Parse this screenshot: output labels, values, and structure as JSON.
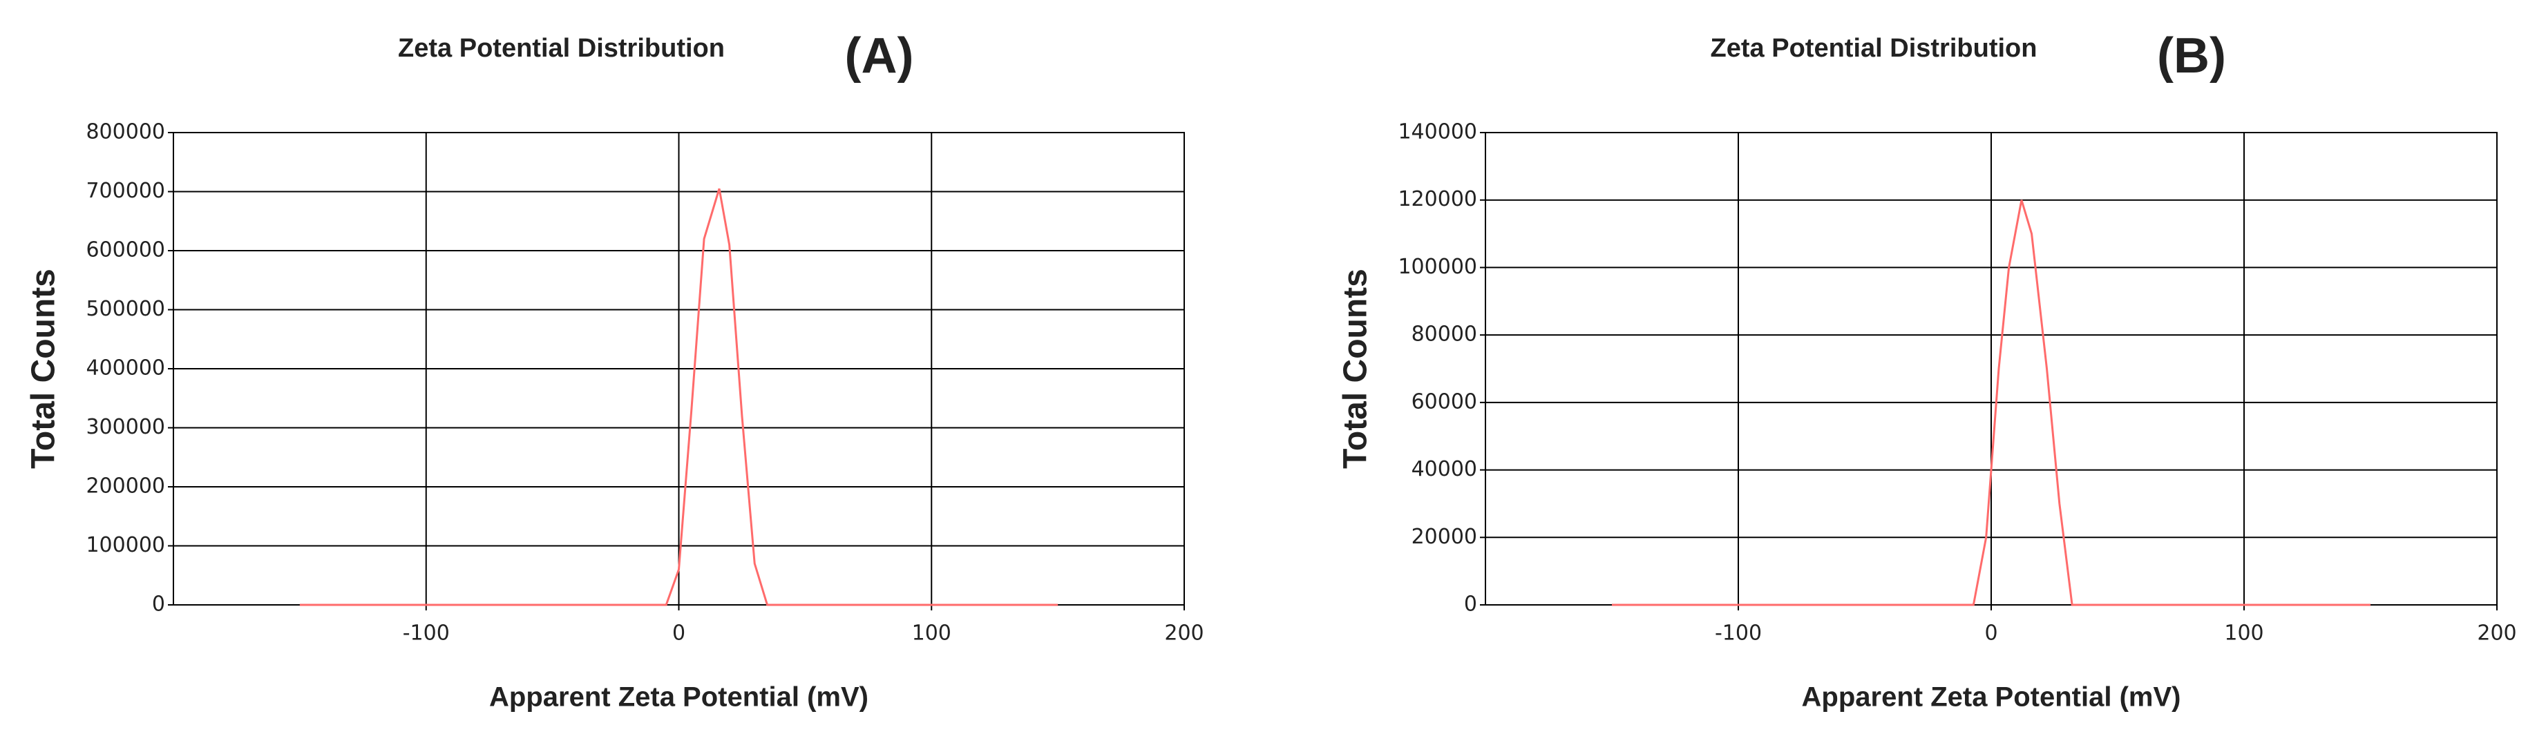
{
  "chart_data": [
    {
      "type": "line",
      "title": "Zeta Potential Distribution",
      "panel_label": "(A)",
      "xlabel": "Apparent Zeta Potential (mV)",
      "ylabel": "Total Counts",
      "x": [
        -150,
        -5,
        0,
        5,
        10,
        16,
        20,
        25,
        30,
        35,
        150
      ],
      "values": [
        0,
        0,
        60000,
        330000,
        620000,
        705000,
        610000,
        320000,
        70000,
        0,
        0
      ],
      "color": "#ff6b6b",
      "xlim": [
        -200,
        200
      ],
      "xticks": [
        -100,
        0,
        100,
        200
      ],
      "ylim": [
        0,
        800000
      ],
      "yticks": [
        0,
        100000,
        200000,
        300000,
        400000,
        500000,
        600000,
        700000,
        800000
      ],
      "grid": true
    },
    {
      "type": "line",
      "title": "Zeta Potential Distribution",
      "panel_label": "(B)",
      "xlabel": "Apparent Zeta Potential (mV)",
      "ylabel": "Total Counts",
      "x": [
        -150,
        -7,
        -2,
        3,
        7,
        12,
        16,
        22,
        27,
        32,
        150
      ],
      "values": [
        0,
        0,
        20000,
        70000,
        100000,
        120000,
        110000,
        70000,
        30000,
        0,
        0
      ],
      "color": "#ff6b6b",
      "xlim": [
        -200,
        200
      ],
      "xticks": [
        -100,
        0,
        100,
        200
      ],
      "ylim": [
        0,
        140000
      ],
      "yticks": [
        0,
        20000,
        40000,
        60000,
        80000,
        100000,
        120000,
        140000
      ],
      "grid": true
    }
  ]
}
